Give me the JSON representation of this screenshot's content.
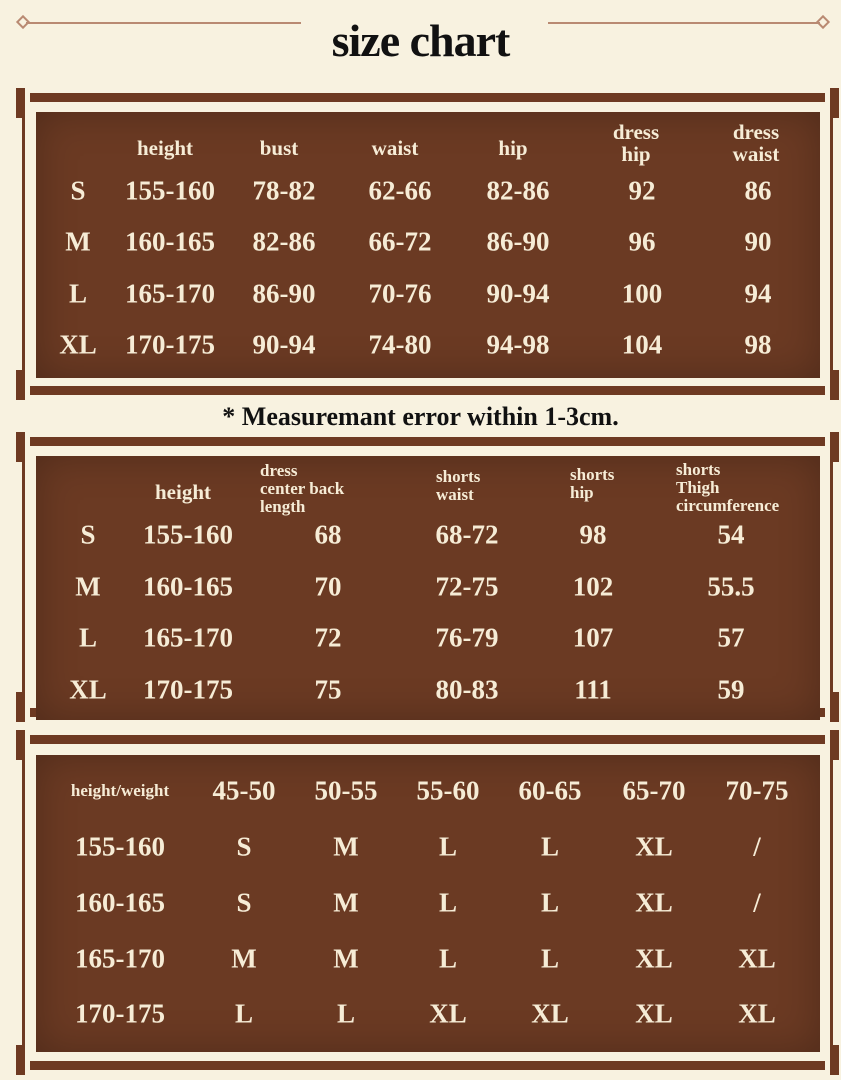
{
  "title": "size chart",
  "colors": {
    "background": "#f8f2e0",
    "panel": "#6b3a23",
    "frame": "#6e3a22",
    "text_on_panel": "#f6ecd6"
  },
  "table1": {
    "headers": [
      "",
      "height",
      "bust",
      "waist",
      "hip",
      "dress\nhip",
      "dress\nwaist"
    ],
    "rows": [
      [
        "S",
        "155-160",
        "78-82",
        "62-66",
        "82-86",
        "92",
        "86"
      ],
      [
        "M",
        "160-165",
        "82-86",
        "66-72",
        "86-90",
        "96",
        "90"
      ],
      [
        "L",
        "165-170",
        "86-90",
        "70-76",
        "90-94",
        "100",
        "94"
      ],
      [
        "XL",
        "170-175",
        "90-94",
        "74-80",
        "94-98",
        "104",
        "98"
      ]
    ]
  },
  "note": "* Measuremant error within 1-3cm.",
  "table2": {
    "headers": [
      "",
      "height",
      "dress\ncenter back\nlength",
      "shorts\nwaist",
      "shorts\nhip",
      "shorts\nThigh\ncircumference"
    ],
    "rows": [
      [
        "S",
        "155-160",
        "68",
        "68-72",
        "98",
        "54"
      ],
      [
        "M",
        "160-165",
        "70",
        "72-75",
        "102",
        "55.5"
      ],
      [
        "L",
        "165-170",
        "72",
        "76-79",
        "107",
        "57"
      ],
      [
        "XL",
        "170-175",
        "75",
        "80-83",
        "111",
        "59"
      ]
    ]
  },
  "table3": {
    "headers": [
      "height/weight",
      "45-50",
      "50-55",
      "55-60",
      "60-65",
      "65-70",
      "70-75"
    ],
    "rows": [
      [
        "155-160",
        "S",
        "M",
        "L",
        "L",
        "XL",
        "/"
      ],
      [
        "160-165",
        "S",
        "M",
        "L",
        "L",
        "XL",
        "/"
      ],
      [
        "165-170",
        "M",
        "M",
        "L",
        "L",
        "XL",
        "XL"
      ],
      [
        "170-175",
        "L",
        "L",
        "XL",
        "XL",
        "XL",
        "XL"
      ]
    ]
  }
}
